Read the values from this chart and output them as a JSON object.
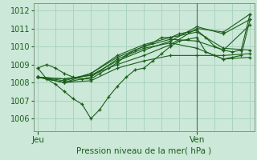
{
  "xlabel": "Pression niveau de la mer( hPa )",
  "bg_color": "#cce8d8",
  "grid_color": "#aad4c0",
  "line_color": "#1a5e1a",
  "ylim": [
    1005.3,
    1012.4
  ],
  "xlim": [
    -1,
    49
  ],
  "yticks": [
    1006,
    1007,
    1008,
    1009,
    1010,
    1011,
    1012
  ],
  "xtick_positions": [
    0,
    36
  ],
  "xtick_labels": [
    "Jeu",
    "Ven"
  ],
  "ven_x": 36,
  "series": [
    [
      0,
      1008.8,
      2,
      1008.2,
      4,
      1007.9,
      6,
      1007.5,
      8,
      1007.1,
      10,
      1006.8,
      12,
      1006.0,
      14,
      1006.5,
      16,
      1007.2,
      18,
      1007.8,
      20,
      1008.3,
      22,
      1008.7,
      24,
      1008.8,
      26,
      1009.2,
      28,
      1009.6,
      30,
      1010.0,
      32,
      1010.3,
      34,
      1010.4,
      36,
      1010.5,
      38,
      1009.7,
      40,
      1009.5,
      42,
      1009.3,
      44,
      1009.4,
      46,
      1009.5,
      48,
      1011.5
    ],
    [
      0,
      1008.3,
      6,
      1008.2,
      12,
      1008.4,
      18,
      1009.0,
      24,
      1009.5,
      30,
      1010.1,
      36,
      1011.0,
      42,
      1010.8,
      48,
      1011.8
    ],
    [
      0,
      1008.3,
      6,
      1008.2,
      12,
      1008.4,
      18,
      1009.2,
      24,
      1009.8,
      30,
      1010.3,
      36,
      1011.1,
      42,
      1010.7,
      48,
      1011.5
    ],
    [
      0,
      1008.3,
      6,
      1008.1,
      12,
      1008.5,
      18,
      1009.4,
      24,
      1010.0,
      30,
      1010.4,
      36,
      1010.3,
      42,
      1009.8,
      48,
      1011.2
    ],
    [
      0,
      1008.3,
      6,
      1008.0,
      12,
      1008.5,
      18,
      1009.5,
      24,
      1010.1,
      30,
      1010.5,
      36,
      1010.8,
      42,
      1009.9,
      48,
      1009.8
    ],
    [
      0,
      1008.3,
      6,
      1008.0,
      12,
      1008.3,
      18,
      1009.3,
      24,
      1009.9,
      30,
      1010.2,
      36,
      1009.9,
      42,
      1009.3,
      48,
      1009.4
    ],
    [
      0,
      1008.3,
      6,
      1008.0,
      12,
      1008.1,
      18,
      1008.8,
      24,
      1009.2,
      30,
      1009.5,
      36,
      1009.5,
      42,
      1009.5,
      48,
      1009.6
    ],
    [
      0,
      1008.8,
      2,
      1009.0,
      4,
      1008.8,
      6,
      1008.5,
      8,
      1008.3,
      10,
      1008.2,
      12,
      1008.2,
      14,
      1008.5,
      16,
      1008.8,
      18,
      1009.1,
      20,
      1009.5,
      22,
      1009.8,
      24,
      1010.0,
      26,
      1010.2,
      28,
      1010.5,
      30,
      1010.5,
      32,
      1010.7,
      34,
      1010.8,
      36,
      1010.9,
      38,
      1010.5,
      40,
      1010.0,
      42,
      1009.8,
      44,
      1009.7,
      46,
      1009.8,
      48,
      1011.8
    ]
  ]
}
